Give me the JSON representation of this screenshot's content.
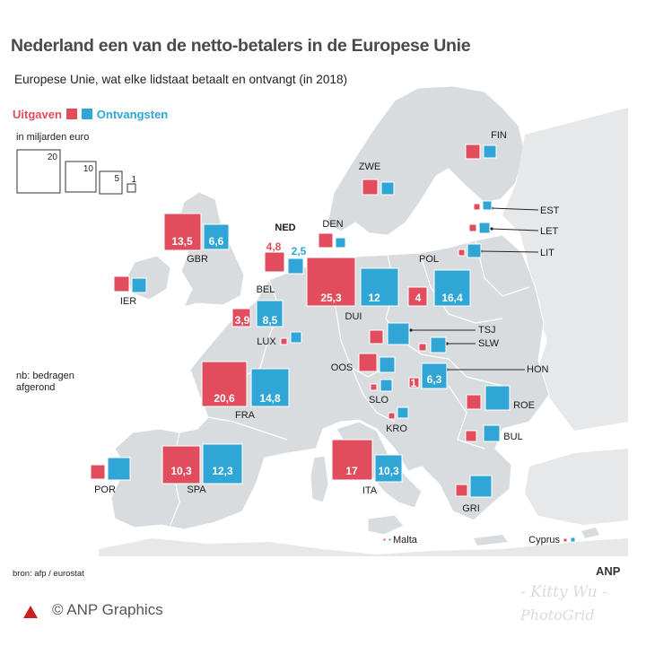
{
  "title": "Nederland een van de netto-betalers in de Europese Unie",
  "subtitle": "Europese Unie, wat elke lidstaat betaalt en ontvangt (in 2018)",
  "legend": {
    "uitgaven": "Uitgaven",
    "ontvangsten": "Ontvangsten"
  },
  "unit": "in miljarden euro",
  "note": "nb: bedragen afgerond",
  "source": "bron: afp / eurostat",
  "anp": "ANP",
  "credit": "© ANP Graphics",
  "watermark": {
    "name": "- Kitty Wu -",
    "app": "PhotoGrid"
  },
  "colors": {
    "uitgaven": "#e14d5c",
    "ontvangsten": "#2fa6d6"
  },
  "scale_legend": [
    "20",
    "10",
    "5",
    "1"
  ],
  "countries": [
    {
      "code": "FIN",
      "uitgaven": "",
      "ontvangsten": ""
    },
    {
      "code": "ZWE",
      "uitgaven": "",
      "ontvangsten": ""
    },
    {
      "code": "EST",
      "uitgaven": "",
      "ontvangsten": ""
    },
    {
      "code": "LET",
      "uitgaven": "",
      "ontvangsten": ""
    },
    {
      "code": "LIT",
      "uitgaven": "",
      "ontvangsten": ""
    },
    {
      "code": "DEN",
      "uitgaven": "",
      "ontvangsten": ""
    },
    {
      "code": "GBR",
      "uitgaven": "13,5",
      "ontvangsten": "6,6"
    },
    {
      "code": "NED",
      "uitgaven": "4,8",
      "ontvangsten": "2,5"
    },
    {
      "code": "IER",
      "uitgaven": "",
      "ontvangsten": ""
    },
    {
      "code": "POL",
      "uitgaven": "4",
      "ontvangsten": "16,4"
    },
    {
      "code": "DUI",
      "uitgaven": "25,3",
      "ontvangsten": "12"
    },
    {
      "code": "BEL",
      "uitgaven": "3,9",
      "ontvangsten": "8,5"
    },
    {
      "code": "LUX",
      "uitgaven": "",
      "ontvangsten": ""
    },
    {
      "code": "TSJ",
      "uitgaven": "",
      "ontvangsten": ""
    },
    {
      "code": "SLW",
      "uitgaven": "",
      "ontvangsten": ""
    },
    {
      "code": "OOS",
      "uitgaven": "",
      "ontvangsten": ""
    },
    {
      "code": "HON",
      "uitgaven": "1",
      "ontvangsten": "6,3"
    },
    {
      "code": "FRA",
      "uitgaven": "20,6",
      "ontvangsten": "14,8"
    },
    {
      "code": "SLO",
      "uitgaven": "",
      "ontvangsten": ""
    },
    {
      "code": "ROE",
      "uitgaven": "",
      "ontvangsten": ""
    },
    {
      "code": "KRO",
      "uitgaven": "",
      "ontvangsten": ""
    },
    {
      "code": "BUL",
      "uitgaven": "",
      "ontvangsten": ""
    },
    {
      "code": "POR",
      "uitgaven": "",
      "ontvangsten": ""
    },
    {
      "code": "SPA",
      "uitgaven": "10,3",
      "ontvangsten": "12,3"
    },
    {
      "code": "ITA",
      "uitgaven": "17",
      "ontvangsten": "10,3"
    },
    {
      "code": "GRI",
      "uitgaven": "",
      "ontvangsten": ""
    },
    {
      "code": "Malta",
      "uitgaven": "",
      "ontvangsten": ""
    },
    {
      "code": "Cyprus",
      "uitgaven": "",
      "ontvangsten": ""
    }
  ]
}
